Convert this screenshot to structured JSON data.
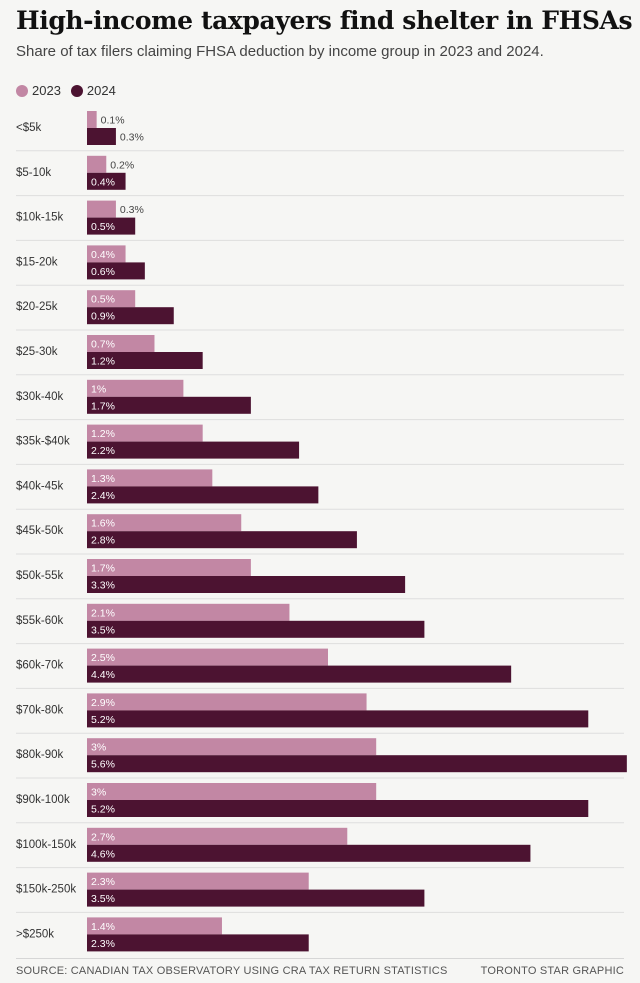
{
  "title": "High-income taxpayers find shelter in FHSAs",
  "subtitle": "Share of tax filers claiming FHSA deduction by income group in 2023 and 2024.",
  "source": "SOURCE: CANADIAN TAX OBSERVATORY USING CRA TAX RETURN STATISTICS",
  "credit": "TORONTO STAR GRAPHIC",
  "colors": {
    "s2023": "#c287a4",
    "s2024": "#4c1331"
  },
  "chart_data": {
    "type": "bar",
    "orientation": "horizontal",
    "title": "High-income taxpayers find shelter in FHSAs",
    "subtitle": "Share of tax filers claiming FHSA deduction by income group in 2023 and 2024.",
    "legend_placement": "top-left",
    "grid": false,
    "xlim": [
      0,
      5.6
    ],
    "categories": [
      "<$5k",
      "$5-10k",
      "$10k-15k",
      "$15-20k",
      "$20-25k",
      "$25-30k",
      "$30k-40k",
      "$35k-$40k",
      "$40k-45k",
      "$45k-50k",
      "$50k-55k",
      "$55k-60k",
      "$60k-70k",
      "$70k-80k",
      "$80k-90k",
      "$90k-100k",
      "$100k-150k",
      "$150k-250k",
      ">$250k"
    ],
    "series": [
      {
        "name": "2023",
        "values": [
          0.1,
          0.2,
          0.3,
          0.4,
          0.5,
          0.7,
          1,
          1.2,
          1.3,
          1.6,
          1.7,
          2.1,
          2.5,
          2.9,
          3,
          3,
          2.7,
          2.3,
          1.4
        ],
        "labels": [
          "0.1%",
          "0.2%",
          "0.3%",
          "0.4%",
          "0.5%",
          "0.7%",
          "1%",
          "1.2%",
          "1.3%",
          "1.6%",
          "1.7%",
          "2.1%",
          "2.5%",
          "2.9%",
          "3%",
          "3%",
          "2.7%",
          "2.3%",
          "1.4%"
        ]
      },
      {
        "name": "2024",
        "values": [
          0.3,
          0.4,
          0.5,
          0.6,
          0.9,
          1.2,
          1.7,
          2.2,
          2.4,
          2.8,
          3.3,
          3.5,
          4.4,
          5.2,
          5.6,
          5.2,
          4.6,
          3.5,
          2.3
        ],
        "labels": [
          "0.3%",
          "0.4%",
          "0.5%",
          "0.6%",
          "0.9%",
          "1.2%",
          "1.7%",
          "2.2%",
          "2.4%",
          "2.8%",
          "3.3%",
          "3.5%",
          "4.4%",
          "5.2%",
          "5.6%",
          "5.2%",
          "4.6%",
          "3.5%",
          "2.3%"
        ]
      }
    ]
  }
}
